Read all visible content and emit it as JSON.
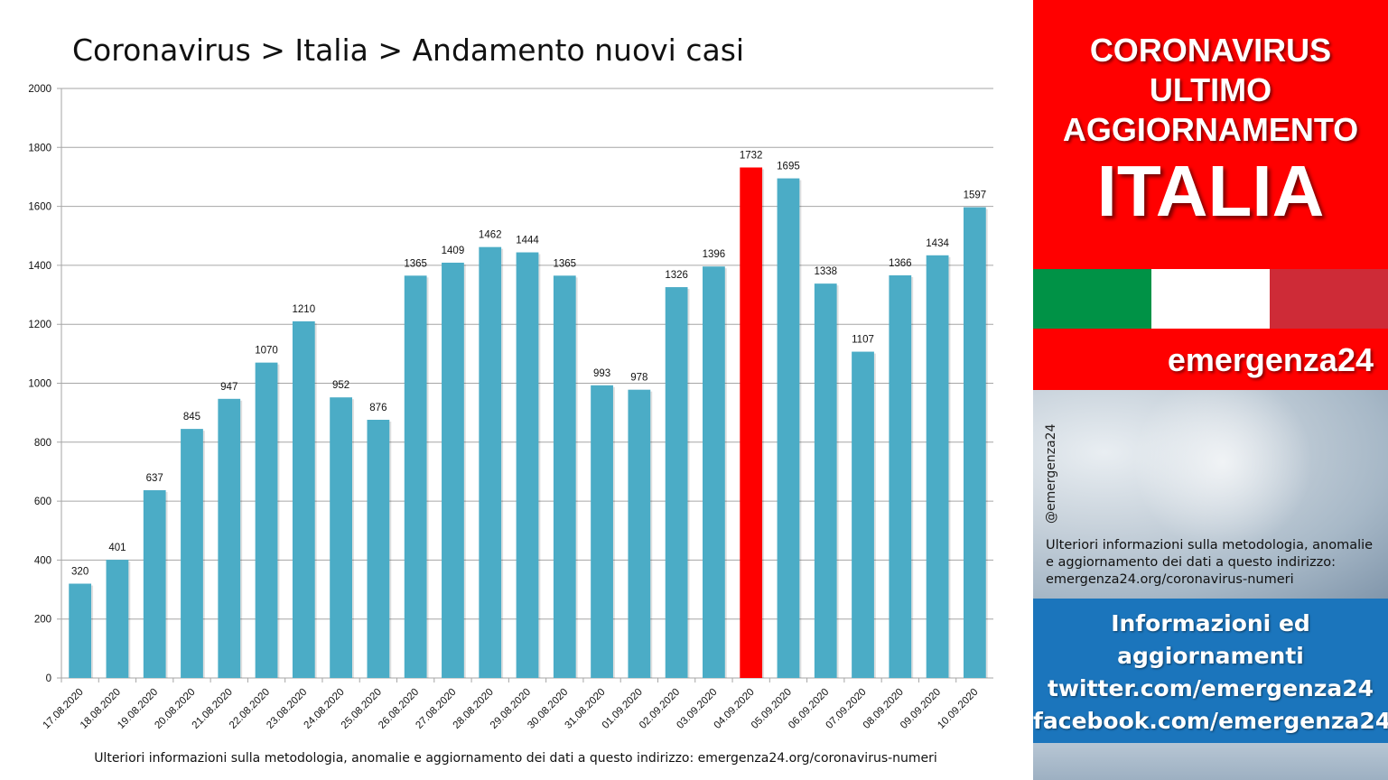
{
  "colors": {
    "bar": "#4bacc6",
    "highlight_bar": "#ff0000",
    "grid": "#a6a6a6",
    "banner_red": "#ff0000",
    "flag_green": "#009246",
    "flag_white": "#ffffff",
    "flag_red": "#ce2b37",
    "info_blue": "#1b75bc"
  },
  "chart_data": {
    "type": "bar",
    "title": "Coronavirus > Italia > Andamento nuovi casi",
    "categories": [
      "17.08.2020",
      "18.08.2020",
      "19.08.2020",
      "20.08.2020",
      "21.08.2020",
      "22.08.2020",
      "23.08.2020",
      "24.08.2020",
      "25.08.2020",
      "26.08.2020",
      "27.08.2020",
      "28.08.2020",
      "29.08.2020",
      "30.08.2020",
      "31.08.2020",
      "01.09.2020",
      "02.09.2020",
      "03.09.2020",
      "04.09.2020",
      "05.09.2020",
      "06.09.2020",
      "07.09.2020",
      "08.09.2020",
      "09.09.2020",
      "10.09.2020"
    ],
    "values": [
      320,
      401,
      637,
      845,
      947,
      1070,
      1210,
      952,
      876,
      1365,
      1409,
      1462,
      1444,
      1365,
      993,
      978,
      1326,
      1396,
      1732,
      1695,
      1338,
      1107,
      1366,
      1434,
      1597
    ],
    "highlight_category": "04.09.2020",
    "ylim": [
      0,
      2000
    ],
    "yticks": [
      0,
      200,
      400,
      600,
      800,
      1000,
      1200,
      1400,
      1600,
      1800,
      2000
    ],
    "grid": true,
    "data_labels": true,
    "xlabel": "",
    "ylabel": ""
  },
  "footer_note": "Ulteriori informazioni sulla metodologia, anomalie e aggiornamento dei dati a questo indirizzo: emergenza24.org/coronavirus-numeri",
  "banner": {
    "line1": "CORONAVIRUS",
    "line2": "ULTIMO",
    "line3": "AGGIORNAMENTO",
    "big": "ITALIA"
  },
  "brand": "emergenza24",
  "handle": "@emergenza24",
  "photo_note": "Ulteriori informazioni sulla metodologia, anomalie e aggiornamento dei dati a questo indirizzo: emergenza24.org/coronavirus-numeri",
  "info": {
    "line1": "Informazioni ed",
    "line2": "aggiornamenti",
    "line3": "twitter.com/emergenza24",
    "line4": "facebook.com/emergenza24"
  }
}
